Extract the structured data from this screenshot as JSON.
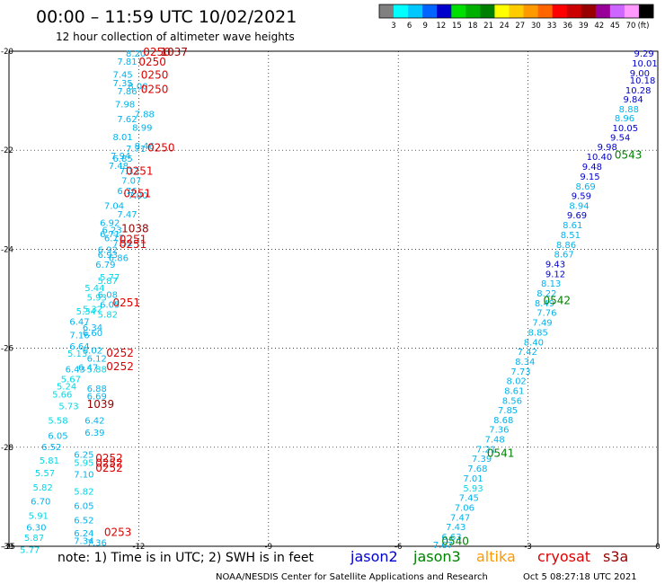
{
  "header": {
    "title": "00:00 – 11:59 UTC 10/02/2021",
    "subtitle": "12 hour collection of altimeter wave heights"
  },
  "colorbar": {
    "swatches": [
      "#808080",
      "#00ffff",
      "#00c8ff",
      "#0064ff",
      "#0000cd",
      "#00e000",
      "#00b000",
      "#008000",
      "#ffff00",
      "#ffcc00",
      "#ff9900",
      "#ff6600",
      "#ff0000",
      "#cc0000",
      "#990000",
      "#990099",
      "#cc66ff",
      "#ff99ff",
      "#000000"
    ],
    "labels": [
      "3",
      "6",
      "9",
      "12",
      "15",
      "18",
      "21",
      "24",
      "27",
      "30",
      "33",
      "36",
      "39",
      "42",
      "45",
      "70"
    ],
    "unit": "(ft)"
  },
  "chart_data": {
    "type": "scatter",
    "xlim": [
      -15,
      0
    ],
    "ylim": [
      -30,
      -20
    ],
    "xticks": [
      -15,
      -12,
      -9,
      -6,
      -3,
      0
    ],
    "yticks": [
      -20,
      -22,
      -24,
      -26,
      -28,
      -30
    ],
    "xtick_labels": [
      "-15",
      "-12",
      "-9",
      "-6",
      "-3",
      "0"
    ],
    "ytick_labels": [
      "-20",
      "-22",
      "-24",
      "-26",
      "-28",
      "-30"
    ],
    "grid": true,
    "west_track": {
      "swh": [
        "8.20",
        "7.81",
        "7.45",
        "7.35",
        "8.00",
        "7.86",
        "7.98",
        "7.88",
        "7.62",
        "8.99",
        "8.01",
        "8.46",
        "7.71",
        "7.94",
        "6.85",
        "7.48",
        "7.33",
        "7.07",
        "6.76",
        "7.00",
        "7.04",
        "7.47",
        "6.92",
        "6.23",
        "6.71",
        "6.77",
        "7.52",
        "6.92",
        "6.93",
        "6.86",
        "6.79",
        "5.77",
        "5.87",
        "5.44",
        "6.08",
        "5.93",
        "6.05",
        "5.32",
        "5.34",
        "5.82",
        "6.47",
        "6.34",
        "7.16",
        "6.60",
        "6.64",
        "6.02",
        "5.13",
        "6.12",
        "6.43",
        "6.47",
        "5.88",
        "5.67",
        "6.88",
        "5.24",
        "6.69",
        "5.66",
        "5.73",
        "6.42",
        "5.58",
        "6.39",
        "6.05",
        "6.52",
        "6.25",
        "5.81",
        "5.95",
        "5.57",
        "7.10",
        "5.82",
        "5.82",
        "6.70",
        "6.05",
        "5.91",
        "6.52",
        "6.30",
        "6.24",
        "5.87",
        "7.34",
        "5.77",
        "7.36"
      ],
      "swh_y": [
        -20.05,
        -20.22,
        -20.48,
        -20.65,
        -20.72,
        -20.82,
        -21.08,
        -21.28,
        -21.38,
        -21.55,
        -21.74,
        -21.92,
        -21.98,
        -22.12,
        -22.18,
        -22.32,
        -22.43,
        -22.62,
        -22.83,
        -22.92,
        -23.13,
        -23.3,
        -23.48,
        -23.62,
        -23.7,
        -23.78,
        -23.88,
        -24.02,
        -24.12,
        -24.18,
        -24.32,
        -24.57,
        -24.65,
        -24.79,
        -24.93,
        -24.98,
        -25.13,
        -25.22,
        -25.26,
        -25.33,
        -25.47,
        -25.59,
        -25.74,
        -25.7,
        -25.97,
        -26.05,
        -26.12,
        -26.22,
        -26.43,
        -26.4,
        -26.43,
        -26.63,
        -26.82,
        -26.78,
        -26.98,
        -26.94,
        -27.18,
        -27.47,
        -27.47,
        -27.71,
        -27.78,
        -28.0,
        -28.16,
        -28.28,
        -28.32,
        -28.53,
        -28.56,
        -28.82,
        -28.9,
        -29.1,
        -29.19,
        -29.39,
        -29.48,
        -29.63,
        -29.75,
        -29.84,
        -29.9,
        -30.08,
        -29.94
      ],
      "swh_x": [
        -12.3,
        -12.5,
        -12.6,
        -12.6,
        -12.25,
        -12.5,
        -12.55,
        -12.1,
        -12.5,
        -12.15,
        -12.6,
        -12.1,
        -12.3,
        -12.65,
        -12.6,
        -12.7,
        -12.45,
        -12.4,
        -12.5,
        -12.25,
        -12.8,
        -12.5,
        -12.9,
        -12.85,
        -12.9,
        -12.8,
        -12.6,
        -12.95,
        -12.95,
        -12.7,
        -13.0,
        -12.9,
        -12.95,
        -13.25,
        -12.95,
        -13.2,
        -12.9,
        -13.3,
        -13.45,
        -12.95,
        -13.6,
        -13.3,
        -13.6,
        -13.3,
        -13.6,
        -13.3,
        -13.65,
        -13.2,
        -13.7,
        -13.4,
        -13.2,
        -13.8,
        -13.2,
        -13.9,
        -13.2,
        -14.0,
        -13.85,
        -13.25,
        -14.1,
        -13.25,
        -14.1,
        -14.25,
        -13.5,
        -14.3,
        -13.5,
        -14.4,
        -13.5,
        -14.45,
        -13.5,
        -14.5,
        -13.5,
        -14.55,
        -13.5,
        -14.6,
        -13.5,
        -14.65,
        -13.5,
        -14.75,
        -13.2
      ],
      "passes": [
        {
          "label": "0250",
          "x": -11.9,
          "y": -20.02,
          "color": "#dd0000"
        },
        {
          "label": "1037",
          "x": -11.5,
          "y": -20.02,
          "color": "#990000"
        },
        {
          "label": "0250",
          "x": -12.0,
          "y": -20.22,
          "color": "#dd0000"
        },
        {
          "label": "0250",
          "x": -11.95,
          "y": -20.48,
          "color": "#dd0000"
        },
        {
          "label": "0250",
          "x": -11.95,
          "y": -20.77,
          "color": "#dd0000"
        },
        {
          "label": "0250",
          "x": -11.8,
          "y": -21.95,
          "color": "#dd0000"
        },
        {
          "label": "0251",
          "x": -12.3,
          "y": -22.42,
          "color": "#dd0000"
        },
        {
          "label": "0251",
          "x": -12.35,
          "y": -22.88,
          "color": "#dd0000"
        },
        {
          "label": "1038",
          "x": -12.4,
          "y": -23.58,
          "color": "#990000"
        },
        {
          "label": "0251",
          "x": -12.45,
          "y": -23.8,
          "color": "#dd0000"
        },
        {
          "label": "0251",
          "x": -12.45,
          "y": -23.9,
          "color": "#dd0000"
        },
        {
          "label": "0251",
          "x": -12.6,
          "y": -25.08,
          "color": "#dd0000"
        },
        {
          "label": "0252",
          "x": -12.75,
          "y": -26.1,
          "color": "#dd0000"
        },
        {
          "label": "0252",
          "x": -12.75,
          "y": -26.37,
          "color": "#dd0000"
        },
        {
          "label": "1039",
          "x": -13.2,
          "y": -27.13,
          "color": "#990000"
        },
        {
          "label": "0252",
          "x": -13.0,
          "y": -28.22,
          "color": "#dd0000"
        },
        {
          "label": "0252",
          "x": -13.0,
          "y": -28.32,
          "color": "#dd0000"
        },
        {
          "label": "0252",
          "x": -13.0,
          "y": -28.42,
          "color": "#dd0000"
        },
        {
          "label": "0253",
          "x": -12.8,
          "y": -29.72,
          "color": "#dd0000"
        }
      ]
    },
    "east_track": {
      "swh": [
        "9.29",
        "10.01",
        "9.00",
        "10.18",
        "10.28",
        "9.84",
        "8.88",
        "8.96",
        "10.05",
        "9.54",
        "9.98",
        "10.40",
        "9.48",
        "9.15",
        "8.69",
        "9.59",
        "8.94",
        "9.69",
        "8.61",
        "8.51",
        "8.86",
        "8.67",
        "9.43",
        "9.12",
        "8.13",
        "8.22",
        "8.49",
        "7.76",
        "7.49",
        "8.85",
        "8.40",
        "7.42",
        "8.34",
        "7.73",
        "8.02",
        "8.61",
        "8.56",
        "7.85",
        "8.68",
        "7.36",
        "7.48",
        "7.21",
        "7.39",
        "7.68",
        "7.01",
        "5.93",
        "7.45",
        "7.06",
        "7.47",
        "7.43",
        "6.63",
        "7.67"
      ],
      "swh_y": [
        -20.05,
        -20.25,
        -20.45,
        -20.6,
        -20.8,
        -20.98,
        -21.18,
        -21.36,
        -21.56,
        -21.75,
        -21.94,
        -22.14,
        -22.34,
        -22.54,
        -22.74,
        -22.93,
        -23.13,
        -23.32,
        -23.52,
        -23.72,
        -23.92,
        -24.11,
        -24.31,
        -24.51,
        -24.7,
        -24.9,
        -25.1,
        -25.29,
        -25.49,
        -25.69,
        -25.89,
        -26.08,
        -26.28,
        -26.48,
        -26.67,
        -26.87,
        -27.07,
        -27.26,
        -27.46,
        -27.65,
        -27.85,
        -28.05,
        -28.24,
        -28.44,
        -28.64,
        -28.84,
        -29.03,
        -29.23,
        -29.43,
        -29.62,
        -29.82,
        -29.98
      ],
      "swh_x": [
        -0.55,
        -0.6,
        -0.65,
        -0.65,
        -0.75,
        -0.8,
        -0.9,
        -1.0,
        -1.05,
        -1.1,
        -1.4,
        -1.65,
        -1.75,
        -1.8,
        -1.9,
        -2.0,
        -2.05,
        -2.1,
        -2.2,
        -2.25,
        -2.35,
        -2.4,
        -2.6,
        -2.6,
        -2.7,
        -2.8,
        -2.85,
        -2.8,
        -2.9,
        -3.0,
        -3.1,
        -3.25,
        -3.3,
        -3.4,
        -3.5,
        -3.55,
        -3.6,
        -3.7,
        -3.8,
        -3.9,
        -4.0,
        -4.2,
        -4.3,
        -4.4,
        -4.5,
        -4.5,
        -4.6,
        -4.7,
        -4.8,
        -4.9,
        -5.0,
        -5.2
      ],
      "passes": [
        {
          "label": "0543",
          "x": -1.0,
          "y": -22.1,
          "color": "#008000"
        },
        {
          "label": "0542",
          "x": -2.65,
          "y": -25.04,
          "color": "#008000"
        },
        {
          "label": "0541",
          "x": -3.95,
          "y": -28.12,
          "color": "#008000"
        },
        {
          "label": "0540",
          "x": -5.0,
          "y": -29.9,
          "color": "#008000"
        }
      ]
    }
  },
  "footer": {
    "note": "note:  1) Time is in UTC;  2) SWH is in feet",
    "legend": [
      {
        "name": "jason2",
        "color": "#0000cd"
      },
      {
        "name": "jason3",
        "color": "#008000"
      },
      {
        "name": "altika",
        "color": "#ff9900"
      },
      {
        "name": "cryosat",
        "color": "#dd0000"
      },
      {
        "name": "s3a",
        "color": "#990000"
      }
    ],
    "credit": "NOAA/NESDIS Center for Satellite Applications and Research",
    "generated": "Oct  5 08:27:18 UTC 2021"
  }
}
